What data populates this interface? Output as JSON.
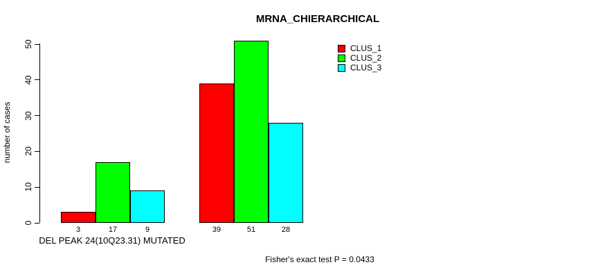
{
  "title": "MRNA_CHIERARCHICAL",
  "y_axis": {
    "label": "number of cases",
    "ticks": [
      0,
      10,
      20,
      30,
      40,
      50
    ]
  },
  "x_axis": {
    "group_label": "DEL PEAK 24(10Q23.31) MUTATED"
  },
  "footer": "Fisher's exact test P = 0.0433",
  "legend": {
    "items": [
      {
        "label": "CLUS_1",
        "color": "#FF0000"
      },
      {
        "label": "CLUS_2",
        "color": "#00FF00"
      },
      {
        "label": "CLUS_3",
        "color": "#00FFFF"
      }
    ]
  },
  "chart_data": {
    "type": "bar",
    "title": "MRNA_CHIERARCHICAL",
    "xlabel": "",
    "ylabel": "number of cases",
    "ylim": [
      0,
      50
    ],
    "yticks": [
      0,
      10,
      20,
      30,
      40,
      50
    ],
    "grid": false,
    "legend_position": "top-right",
    "categories": [
      "DEL PEAK 24(10Q23.31) MUTATED",
      ""
    ],
    "series": [
      {
        "name": "CLUS_1",
        "color": "#FF0000",
        "values": [
          3,
          39
        ]
      },
      {
        "name": "CLUS_2",
        "color": "#00FF00",
        "values": [
          17,
          51
        ]
      },
      {
        "name": "CLUS_3",
        "color": "#00FFFF",
        "values": [
          9,
          28
        ]
      }
    ],
    "bar_labels": [
      [
        3,
        17,
        9
      ],
      [
        39,
        51,
        28
      ]
    ],
    "annotation": "Fisher's exact test P = 0.0433"
  }
}
